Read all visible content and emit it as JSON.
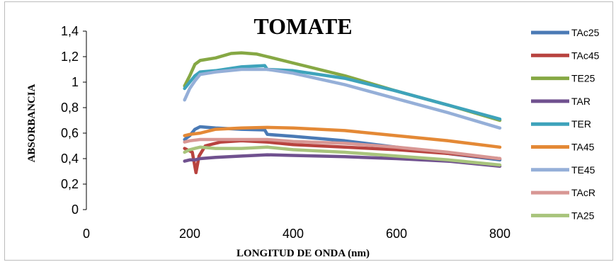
{
  "chart_data": {
    "type": "line",
    "title": "TOMATE",
    "xlabel": "LONGITUD DE ONDA (nm)",
    "ylabel": "ABSORBANCIA",
    "xlim": [
      0,
      800
    ],
    "ylim": [
      0,
      1.4
    ],
    "xticks": [
      "0",
      "200",
      "400",
      "600",
      "800"
    ],
    "yticks": [
      "0",
      "0,2",
      "0,4",
      "0,6",
      "0,8",
      "1",
      "1,2",
      "1,4"
    ],
    "legend_position": "right",
    "series": [
      {
        "name": "TAc25",
        "color": "#4a7ab5",
        "x": [
          190,
          200,
          210,
          220,
          250,
          300,
          345,
          350,
          400,
          500,
          600,
          700,
          800
        ],
        "y": [
          0.55,
          0.58,
          0.63,
          0.65,
          0.64,
          0.63,
          0.625,
          0.59,
          0.575,
          0.54,
          0.49,
          0.44,
          0.39
        ]
      },
      {
        "name": "TAc45",
        "color": "#b8433f",
        "x": [
          190,
          205,
          212,
          218,
          230,
          260,
          300,
          350,
          400,
          500,
          600,
          700,
          800
        ],
        "y": [
          0.48,
          0.45,
          0.29,
          0.42,
          0.5,
          0.53,
          0.54,
          0.53,
          0.51,
          0.49,
          0.47,
          0.44,
          0.4
        ]
      },
      {
        "name": "TE25",
        "color": "#86a844",
        "x": [
          190,
          200,
          210,
          220,
          250,
          280,
          300,
          330,
          350,
          400,
          500,
          600,
          700,
          800
        ],
        "y": [
          0.97,
          1.05,
          1.14,
          1.17,
          1.19,
          1.225,
          1.23,
          1.22,
          1.2,
          1.15,
          1.05,
          0.93,
          0.82,
          0.7
        ]
      },
      {
        "name": "TAR",
        "color": "#70518f",
        "x": [
          190,
          200,
          210,
          220,
          250,
          300,
          350,
          400,
          500,
          600,
          700,
          800
        ],
        "y": [
          0.38,
          0.39,
          0.39,
          0.4,
          0.41,
          0.42,
          0.43,
          0.425,
          0.415,
          0.4,
          0.38,
          0.34
        ]
      },
      {
        "name": "TER",
        "color": "#3ea3bb",
        "x": [
          190,
          200,
          210,
          220,
          250,
          300,
          345,
          350,
          400,
          500,
          600,
          700,
          800
        ],
        "y": [
          0.95,
          1.0,
          1.05,
          1.08,
          1.09,
          1.12,
          1.13,
          1.1,
          1.09,
          1.03,
          0.93,
          0.82,
          0.71
        ]
      },
      {
        "name": "TA45",
        "color": "#e48936",
        "x": [
          190,
          200,
          220,
          250,
          300,
          350,
          400,
          500,
          600,
          700,
          800
        ],
        "y": [
          0.58,
          0.59,
          0.6,
          0.63,
          0.64,
          0.645,
          0.64,
          0.62,
          0.58,
          0.54,
          0.49
        ]
      },
      {
        "name": "TE45",
        "color": "#95afd8",
        "x": [
          190,
          200,
          210,
          220,
          250,
          300,
          350,
          400,
          500,
          600,
          700,
          800
        ],
        "y": [
          0.86,
          0.95,
          1.01,
          1.06,
          1.08,
          1.1,
          1.1,
          1.07,
          0.98,
          0.87,
          0.76,
          0.64
        ]
      },
      {
        "name": "TAcR",
        "color": "#d89794",
        "x": [
          190,
          200,
          220,
          250,
          300,
          350,
          400,
          500,
          600,
          700,
          800
        ],
        "y": [
          0.53,
          0.54,
          0.55,
          0.55,
          0.55,
          0.55,
          0.535,
          0.52,
          0.49,
          0.45,
          0.4
        ]
      },
      {
        "name": "TA25",
        "color": "#a8c47c",
        "x": [
          190,
          200,
          210,
          220,
          250,
          300,
          350,
          400,
          500,
          600,
          700,
          800
        ],
        "y": [
          0.45,
          0.47,
          0.48,
          0.49,
          0.48,
          0.48,
          0.49,
          0.47,
          0.45,
          0.42,
          0.39,
          0.35
        ]
      }
    ]
  }
}
